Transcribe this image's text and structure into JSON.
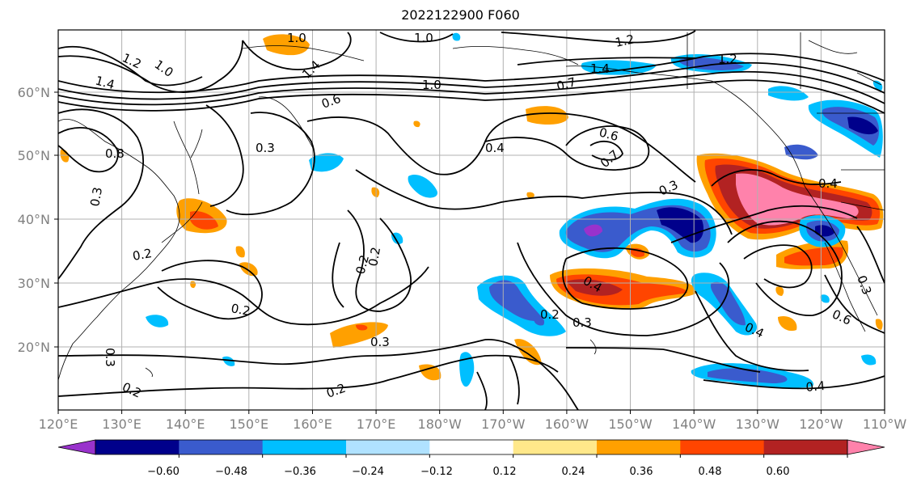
{
  "title": "2022122900 F060",
  "map": {
    "lon_labels": [
      "120°E",
      "130°E",
      "140°E",
      "150°E",
      "160°E",
      "170°E",
      "180°W",
      "170°W",
      "160°W",
      "150°W",
      "140°W",
      "130°W",
      "120°W",
      "110°W"
    ],
    "lat_labels": [
      "20°N",
      "30°N",
      "40°N",
      "50°N",
      "60°N"
    ],
    "contour_labels": [
      "1.0",
      "1.2",
      "1.0",
      "1.0",
      "1.2",
      "1.4",
      "1.2",
      "1.4",
      "1.4",
      "1.0",
      "0.7",
      "0.6",
      "0.8",
      "0.3",
      "0.4",
      "0.6",
      "0.7",
      "0.4",
      "0.3",
      "0.3",
      "0.2",
      "0.2",
      "0.2",
      "0.2",
      "0.3",
      "0.3",
      "0.3",
      "0.4",
      "0.6",
      "0.2",
      "0.3",
      "0.4",
      "0.2",
      "0.2",
      "0.4"
    ]
  },
  "colorbar": {
    "colors": [
      "#9932cc",
      "#00008b",
      "#3a5bcd",
      "#00bfff",
      "#b0e2ff",
      "#ffffff",
      "#ffe88a",
      "#ffa000",
      "#ff4500",
      "#b22222",
      "#ff82ab"
    ],
    "tick_labels": [
      "−0.60",
      "−0.48",
      "−0.36",
      "−0.24",
      "−0.12",
      "0.12",
      "0.24",
      "0.36",
      "0.48",
      "0.60"
    ]
  }
}
